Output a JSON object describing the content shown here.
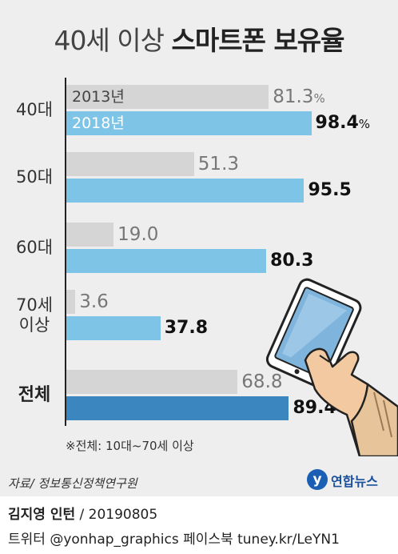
{
  "title_light": "40세 이상",
  "title_bold": "스마트폰 보유율",
  "chart_data": {
    "type": "bar",
    "orientation": "horizontal",
    "title": "40세 이상 스마트폰 보유율",
    "categories": [
      "40대",
      "50대",
      "60대",
      "70세 이상",
      "전체"
    ],
    "series": [
      {
        "name": "2013년",
        "values": [
          81.3,
          51.3,
          19.0,
          3.6,
          68.8
        ]
      },
      {
        "name": "2018년",
        "values": [
          98.4,
          95.5,
          80.3,
          37.8,
          89.4
        ]
      }
    ],
    "value_labels": {
      "2013년": [
        "81.3",
        "51.3",
        "19.0",
        "3.6",
        "68.8"
      ],
      "2018년": [
        "98.4",
        "95.5",
        "80.3",
        "37.8",
        "89.4"
      ]
    },
    "unit": "%",
    "xlim": [
      0,
      100
    ],
    "grid": false,
    "legend": "inside first bars"
  },
  "category_display": [
    [
      "40대"
    ],
    [
      "50대"
    ],
    [
      "60대"
    ],
    [
      "70세",
      "이상"
    ],
    [
      "전체"
    ]
  ],
  "colors": {
    "bar_2013": "#d5d5d5",
    "bar_2018": "#7ec4e6",
    "bar_total_2018": "#3c86c0",
    "panel_bg": "#eeeeee"
  },
  "note": "※전체: 10대~70세 이상",
  "source": "자료/ 정보통신정책연구원",
  "logo": {
    "mark": "y",
    "text": "연합뉴스"
  },
  "credit": {
    "name": "김지영 인턴",
    "date": " / 20190805"
  },
  "social": "트위터 @yonhap_graphics  페이스북 tuney.kr/LeYN1",
  "illustration": {
    "icon": "hand-holding-smartphone-icon"
  }
}
